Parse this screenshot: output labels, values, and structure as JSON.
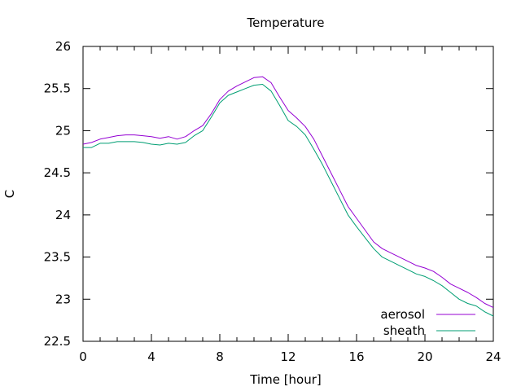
{
  "chart_data": {
    "type": "line",
    "title": "Temperature",
    "xlabel": "Time [hour]",
    "ylabel": "C",
    "xlim": [
      0,
      24
    ],
    "ylim": [
      22.5,
      26
    ],
    "xticks": [
      0,
      4,
      8,
      12,
      16,
      20,
      24
    ],
    "yticks": [
      22.5,
      23,
      23.5,
      24,
      24.5,
      25,
      25.5,
      26
    ],
    "grid": false,
    "legend": "bottom-right",
    "series": [
      {
        "name": "aerosol",
        "color": "#9400d3",
        "x": [
          0,
          0.5,
          1,
          1.5,
          2,
          2.5,
          3,
          3.5,
          4,
          4.5,
          5,
          5.5,
          6,
          6.5,
          7,
          7.5,
          8,
          8.5,
          9,
          9.5,
          10,
          10.5,
          11,
          11.5,
          12,
          12.5,
          13,
          13.5,
          14,
          14.5,
          15,
          15.5,
          16,
          16.5,
          17,
          17.5,
          18,
          18.5,
          19,
          19.5,
          20,
          20.5,
          21,
          21.5,
          22,
          22.5,
          23,
          23.5,
          24
        ],
        "y": [
          24.84,
          24.86,
          24.9,
          24.92,
          24.94,
          24.95,
          24.95,
          24.94,
          24.93,
          24.91,
          24.93,
          24.9,
          24.93,
          25.0,
          25.06,
          25.2,
          25.37,
          25.47,
          25.53,
          25.58,
          25.63,
          25.64,
          25.57,
          25.4,
          25.24,
          25.15,
          25.05,
          24.9,
          24.7,
          24.5,
          24.3,
          24.1,
          23.96,
          23.82,
          23.68,
          23.6,
          23.55,
          23.5,
          23.45,
          23.4,
          23.37,
          23.33,
          23.26,
          23.18,
          23.13,
          23.08,
          23.02,
          22.95,
          22.9
        ]
      },
      {
        "name": "sheath",
        "color": "#009e73",
        "x": [
          0,
          0.5,
          1,
          1.5,
          2,
          2.5,
          3,
          3.5,
          4,
          4.5,
          5,
          5.5,
          6,
          6.5,
          7,
          7.5,
          8,
          8.5,
          9,
          9.5,
          10,
          10.5,
          11,
          11.5,
          12,
          12.5,
          13,
          13.5,
          14,
          14.5,
          15,
          15.5,
          16,
          16.5,
          17,
          17.5,
          18,
          18.5,
          19,
          19.5,
          20,
          20.5,
          21,
          21.5,
          22,
          22.5,
          23,
          23.5,
          24
        ],
        "y": [
          24.8,
          24.8,
          24.85,
          24.85,
          24.87,
          24.87,
          24.87,
          24.86,
          24.84,
          24.83,
          24.85,
          24.84,
          24.86,
          24.94,
          25.0,
          25.16,
          25.33,
          25.42,
          25.46,
          25.5,
          25.54,
          25.55,
          25.47,
          25.3,
          25.12,
          25.05,
          24.95,
          24.78,
          24.6,
          24.4,
          24.2,
          24.0,
          23.86,
          23.73,
          23.6,
          23.5,
          23.45,
          23.4,
          23.35,
          23.3,
          23.27,
          23.22,
          23.16,
          23.08,
          23.0,
          22.95,
          22.92,
          22.85,
          22.8
        ]
      }
    ]
  }
}
